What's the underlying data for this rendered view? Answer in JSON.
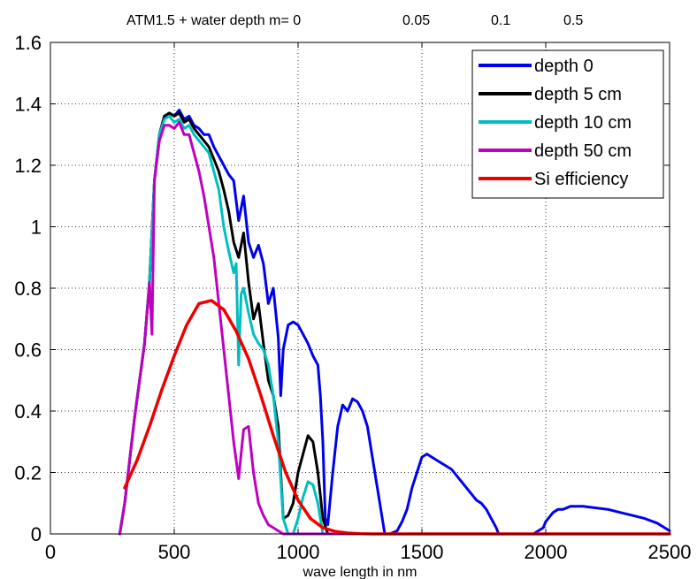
{
  "chart_data": {
    "type": "line",
    "title": "ATM1.5 + water depth  m= 0",
    "title_extra_labels": [
      "0.05",
      "0.1",
      "0.5"
    ],
    "xlabel": "wave length in nm",
    "ylabel": "",
    "xlim": [
      0,
      2500
    ],
    "ylim": [
      0,
      1.6
    ],
    "xticks": [
      0,
      500,
      1000,
      1500,
      2000,
      2500
    ],
    "yticks": [
      0,
      0.2,
      0.4,
      0.6,
      0.8,
      1,
      1.2,
      1.4,
      1.6
    ],
    "xtick_labels": [
      "0",
      "500",
      "1000",
      "1500",
      "2000",
      "2500"
    ],
    "ytick_labels": [
      "0",
      "0.2",
      "0.4",
      "0.6",
      "0.8",
      "1",
      "1.2",
      "1.4",
      "1.6"
    ],
    "grid": true,
    "legend_position": "top-right",
    "series": [
      {
        "name": "depth 0",
        "color": "#0000ee",
        "x": [
          280,
          300,
          320,
          340,
          360,
          380,
          400,
          420,
          440,
          460,
          480,
          500,
          520,
          540,
          560,
          580,
          600,
          620,
          640,
          660,
          680,
          700,
          720,
          740,
          760,
          780,
          800,
          820,
          840,
          860,
          880,
          900,
          920,
          930,
          940,
          960,
          980,
          1000,
          1020,
          1040,
          1060,
          1080,
          1090,
          1100,
          1110,
          1120,
          1140,
          1160,
          1180,
          1200,
          1220,
          1240,
          1260,
          1280,
          1300,
          1320,
          1340,
          1350,
          1370,
          1400,
          1420,
          1440,
          1460,
          1480,
          1500,
          1520,
          1540,
          1560,
          1580,
          1600,
          1620,
          1640,
          1660,
          1680,
          1700,
          1720,
          1740,
          1760,
          1780,
          1800,
          1810,
          1820,
          1900,
          1950,
          1970,
          1990,
          2000,
          2010,
          2030,
          2050,
          2070,
          2100,
          2150,
          2200,
          2250,
          2300,
          2350,
          2400,
          2450,
          2480,
          2500
        ],
        "y": [
          0,
          0.1,
          0.24,
          0.38,
          0.5,
          0.62,
          0.82,
          1.15,
          1.3,
          1.36,
          1.37,
          1.36,
          1.38,
          1.35,
          1.36,
          1.33,
          1.32,
          1.3,
          1.3,
          1.26,
          1.23,
          1.2,
          1.17,
          1.15,
          1.02,
          1.1,
          0.95,
          0.9,
          0.94,
          0.88,
          0.75,
          0.8,
          0.64,
          0.45,
          0.6,
          0.68,
          0.69,
          0.68,
          0.65,
          0.62,
          0.58,
          0.55,
          0.45,
          0.3,
          0.05,
          0.03,
          0.2,
          0.35,
          0.42,
          0.4,
          0.44,
          0.43,
          0.4,
          0.35,
          0.25,
          0.15,
          0.05,
          0.0,
          0.0,
          0.01,
          0.04,
          0.08,
          0.15,
          0.2,
          0.25,
          0.26,
          0.25,
          0.24,
          0.23,
          0.22,
          0.21,
          0.19,
          0.17,
          0.15,
          0.13,
          0.11,
          0.1,
          0.08,
          0.05,
          0.02,
          0.0,
          0.0,
          0.0,
          0.0,
          0.01,
          0.02,
          0.04,
          0.05,
          0.07,
          0.08,
          0.08,
          0.09,
          0.09,
          0.085,
          0.08,
          0.07,
          0.06,
          0.05,
          0.035,
          0.02,
          0.01
        ]
      },
      {
        "name": "depth 5 cm",
        "color": "#000000",
        "x": [
          280,
          300,
          320,
          340,
          360,
          380,
          400,
          420,
          440,
          460,
          480,
          500,
          520,
          540,
          560,
          580,
          600,
          620,
          640,
          660,
          680,
          700,
          720,
          740,
          760,
          780,
          800,
          820,
          840,
          860,
          880,
          900,
          920,
          940,
          960,
          980,
          1000,
          1020,
          1040,
          1060,
          1080,
          1100,
          1120,
          1200,
          1300,
          1500
        ],
        "y": [
          0,
          0.1,
          0.24,
          0.38,
          0.5,
          0.62,
          0.82,
          1.15,
          1.3,
          1.36,
          1.37,
          1.36,
          1.37,
          1.34,
          1.35,
          1.32,
          1.3,
          1.28,
          1.26,
          1.22,
          1.18,
          1.12,
          1.05,
          0.95,
          0.9,
          0.98,
          0.82,
          0.7,
          0.75,
          0.62,
          0.5,
          0.45,
          0.35,
          0.05,
          0.06,
          0.1,
          0.2,
          0.26,
          0.32,
          0.3,
          0.2,
          0.05,
          0.0,
          0.0,
          0.0,
          0.0
        ]
      },
      {
        "name": "depth 10 cm",
        "color": "#00bfbf",
        "x": [
          280,
          300,
          320,
          340,
          360,
          380,
          400,
          420,
          440,
          460,
          480,
          500,
          520,
          540,
          560,
          580,
          600,
          620,
          640,
          660,
          680,
          700,
          720,
          740,
          750,
          760,
          770,
          780,
          800,
          820,
          840,
          860,
          880,
          900,
          920,
          940,
          960,
          980,
          1000,
          1020,
          1040,
          1060,
          1080,
          1100,
          1120,
          1200,
          1300,
          1500
        ],
        "y": [
          0,
          0.1,
          0.24,
          0.38,
          0.5,
          0.62,
          0.82,
          1.15,
          1.3,
          1.35,
          1.36,
          1.34,
          1.35,
          1.32,
          1.33,
          1.3,
          1.28,
          1.26,
          1.24,
          1.18,
          1.12,
          1.0,
          0.92,
          0.85,
          0.88,
          0.55,
          0.78,
          0.8,
          0.72,
          0.65,
          0.62,
          0.6,
          0.55,
          0.45,
          0.3,
          0.05,
          0.0,
          0.0,
          0.05,
          0.12,
          0.17,
          0.16,
          0.1,
          0.0,
          0.0,
          0.0,
          0.0,
          0.0
        ]
      },
      {
        "name": "depth 50 cm",
        "color": "#bf00bf",
        "x": [
          280,
          300,
          320,
          340,
          360,
          380,
          400,
          410,
          420,
          440,
          460,
          480,
          500,
          520,
          540,
          560,
          580,
          600,
          620,
          640,
          660,
          680,
          700,
          720,
          740,
          760,
          780,
          800,
          820,
          840,
          860,
          880,
          900,
          920,
          940,
          960,
          1000,
          1100,
          1300,
          1500
        ],
        "y": [
          0,
          0.1,
          0.24,
          0.38,
          0.5,
          0.62,
          0.82,
          0.65,
          1.15,
          1.28,
          1.33,
          1.33,
          1.32,
          1.34,
          1.3,
          1.3,
          1.24,
          1.18,
          1.1,
          1.0,
          0.9,
          0.75,
          0.6,
          0.45,
          0.3,
          0.18,
          0.34,
          0.35,
          0.2,
          0.1,
          0.06,
          0.03,
          0.02,
          0.01,
          0.0,
          0.0,
          0.0,
          0.0,
          0.0,
          0.0
        ]
      },
      {
        "name": "Si efficiency",
        "color": "#ee0000",
        "x": [
          300,
          350,
          400,
          450,
          500,
          550,
          600,
          650,
          700,
          750,
          800,
          850,
          900,
          950,
          1000,
          1050,
          1100,
          1150,
          1200,
          1250,
          1300,
          1400,
          1500,
          2000,
          2500
        ],
        "y": [
          0.15,
          0.24,
          0.35,
          0.47,
          0.58,
          0.68,
          0.75,
          0.76,
          0.73,
          0.66,
          0.57,
          0.45,
          0.32,
          0.2,
          0.11,
          0.05,
          0.02,
          0.008,
          0.003,
          0.001,
          0.0,
          0.0,
          0.0,
          0.0,
          0.0
        ]
      }
    ]
  }
}
